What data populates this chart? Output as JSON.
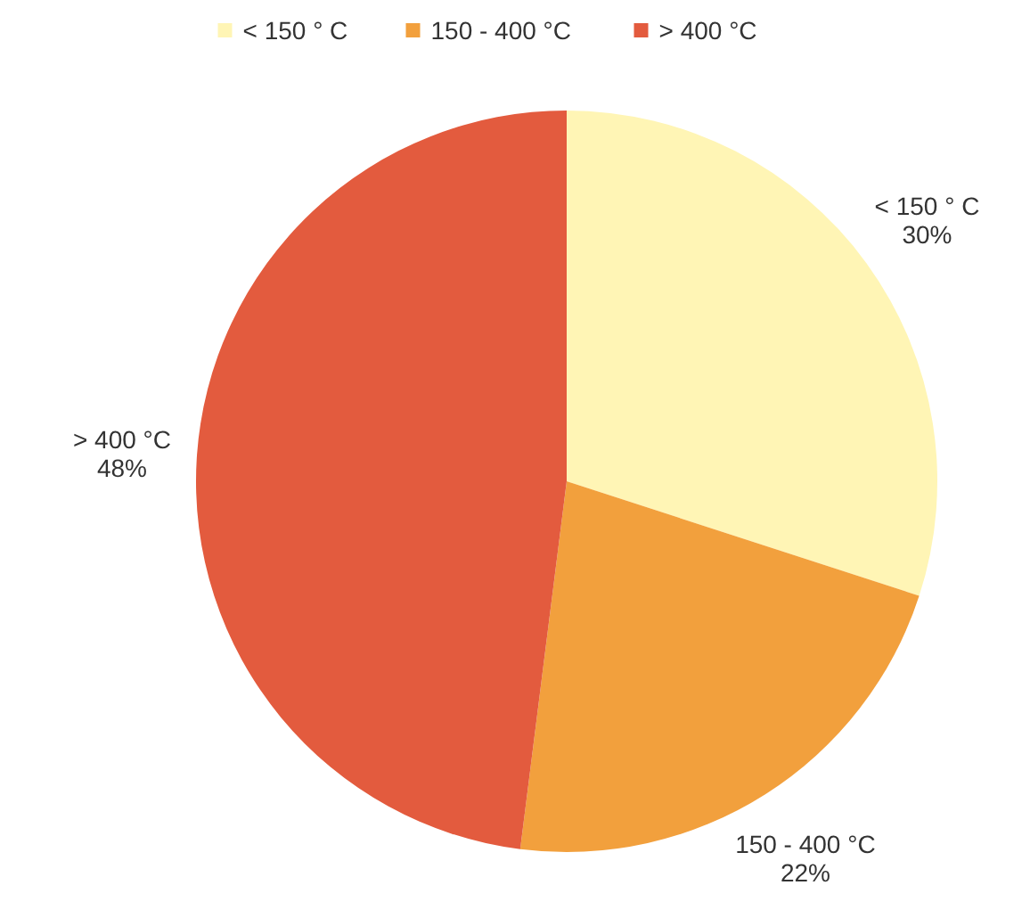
{
  "chart_data": {
    "type": "pie",
    "categories": [
      "< 150 ° C",
      "150 - 400 °C",
      "> 400 °C"
    ],
    "values": [
      30,
      22,
      48
    ],
    "colors": [
      "#fff5b5",
      "#f2a03d",
      "#e35b3e"
    ],
    "value_labels": [
      "30%",
      "22%",
      "48%"
    ],
    "legend": "top"
  }
}
